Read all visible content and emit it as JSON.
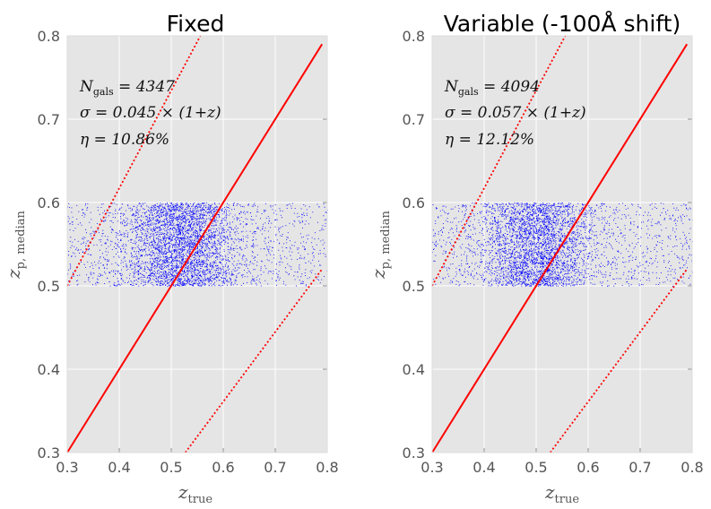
{
  "chart_data": [
    {
      "type": "scatter",
      "title": "Fixed",
      "xlabel": "z_true",
      "ylabel": "z_p, median",
      "xlim": [
        0.3,
        0.8
      ],
      "ylim": [
        0.3,
        0.8
      ],
      "xticks": [
        "0.3",
        "0.4",
        "0.5",
        "0.6",
        "0.7",
        "0.8"
      ],
      "yticks": [
        "0.3",
        "0.4",
        "0.5",
        "0.6",
        "0.7",
        "0.8"
      ],
      "grid": true,
      "annotations": [
        {
          "sym": "N",
          "sub": "gals",
          "text": " = 4347"
        },
        {
          "sym": "",
          "sub": "",
          "text": "σ = 0.045 × (1+z)"
        },
        {
          "sym": "",
          "sub": "",
          "text": "η = 10.86%"
        }
      ],
      "points": {
        "count": 4347,
        "color": "#0000ff",
        "x_range": [
          0.3,
          0.8
        ],
        "y_range": [
          0.5,
          0.6
        ],
        "concentration_center": [
          0.52,
          0.55
        ]
      },
      "lines": [
        {
          "name": "one-to-one",
          "style": "solid",
          "color": "#ff0000",
          "x": [
            0.3,
            0.79
          ],
          "y": [
            0.3,
            0.79
          ]
        },
        {
          "name": "upper outlier bound",
          "style": "dotted",
          "color": "#ff0000",
          "x": [
            0.3,
            0.556
          ],
          "y": [
            0.5,
            0.8
          ]
        },
        {
          "name": "lower outlier bound",
          "style": "dotted",
          "color": "#ff0000",
          "x": [
            0.527,
            0.79
          ],
          "y": [
            0.3,
            0.52
          ]
        }
      ]
    },
    {
      "type": "scatter",
      "title": "Variable (-100Å shift)",
      "xlabel": "z_true",
      "ylabel": "z_p, median",
      "xlim": [
        0.3,
        0.8
      ],
      "ylim": [
        0.3,
        0.8
      ],
      "xticks": [
        "0.3",
        "0.4",
        "0.5",
        "0.6",
        "0.7",
        "0.8"
      ],
      "yticks": [
        "0.3",
        "0.4",
        "0.5",
        "0.6",
        "0.7",
        "0.8"
      ],
      "grid": true,
      "annotations": [
        {
          "sym": "N",
          "sub": "gals",
          "text": " = 4094"
        },
        {
          "sym": "",
          "sub": "",
          "text": "σ = 0.057 × (1+z)"
        },
        {
          "sym": "",
          "sub": "",
          "text": "η = 12.12%"
        }
      ],
      "points": {
        "count": 4094,
        "color": "#0000ff",
        "x_range": [
          0.3,
          0.8
        ],
        "y_range": [
          0.5,
          0.6
        ],
        "concentration_center": [
          0.5,
          0.55
        ]
      },
      "lines": [
        {
          "name": "one-to-one",
          "style": "solid",
          "color": "#ff0000",
          "x": [
            0.3,
            0.79
          ],
          "y": [
            0.3,
            0.79
          ]
        },
        {
          "name": "upper outlier bound",
          "style": "dotted",
          "color": "#ff0000",
          "x": [
            0.3,
            0.556
          ],
          "y": [
            0.5,
            0.8
          ]
        },
        {
          "name": "lower outlier bound",
          "style": "dotted",
          "color": "#ff0000",
          "x": [
            0.527,
            0.79
          ],
          "y": [
            0.3,
            0.52
          ]
        }
      ]
    }
  ],
  "colors": {
    "plot_background": "#e5e5e5",
    "grid": "#ffffff",
    "points": "#0000ff",
    "lines": "#ff0000"
  }
}
